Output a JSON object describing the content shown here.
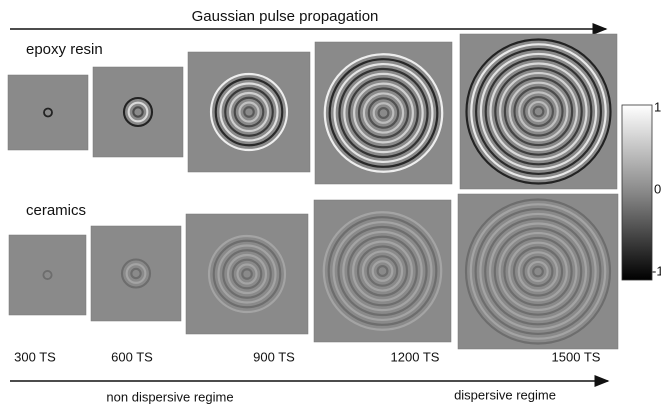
{
  "title": "Gaussian pulse propagation",
  "rows": [
    {
      "label": "epoxy resin"
    },
    {
      "label": "ceramics"
    }
  ],
  "time_steps": [
    "300 TS",
    "600 TS",
    "900 TS",
    "1200 TS",
    "1500 TS"
  ],
  "regimes": {
    "left": "non dispersive regime",
    "right": "dispersive regime"
  },
  "colorbar": {
    "ticks": [
      "1",
      "0",
      "-1"
    ]
  }
}
